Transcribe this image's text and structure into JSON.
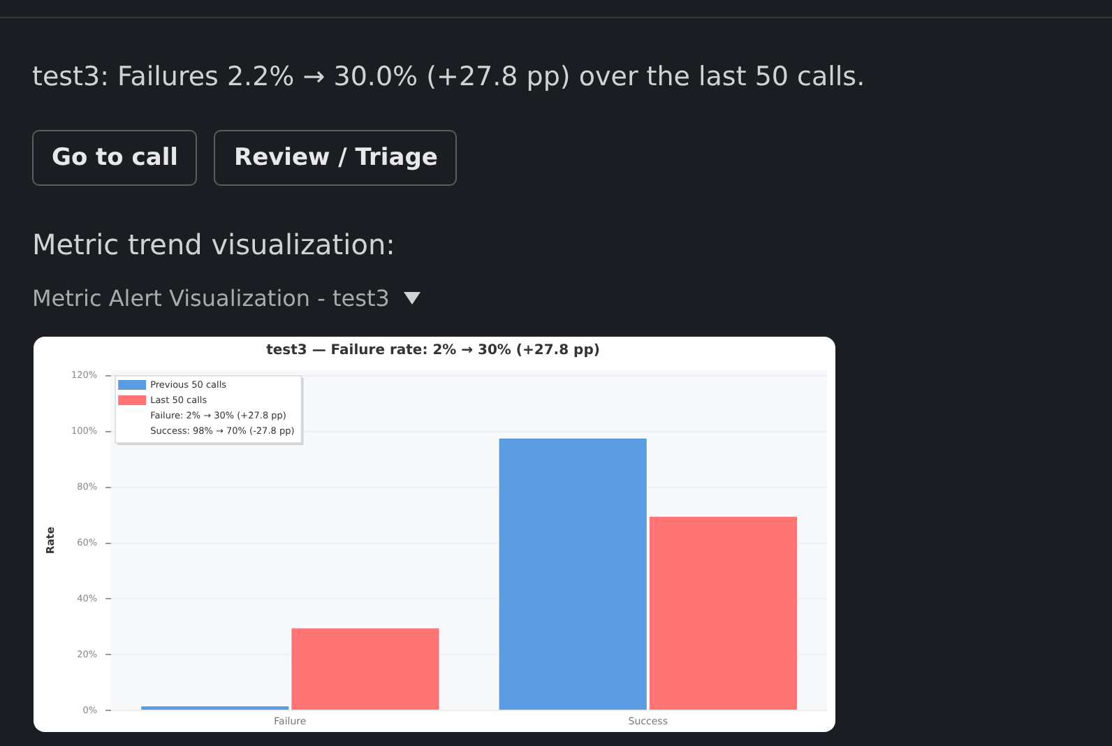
{
  "chart_data": {
    "type": "bar",
    "title": "test3 — Failure rate: 2% → 30% (+27.8 pp)",
    "ylabel": "Rate",
    "categories": [
      "Failure",
      "Success"
    ],
    "series": [
      {
        "name": "Previous 50 calls",
        "color": "#5b9be0",
        "values": [
          2,
          98
        ]
      },
      {
        "name": "Last 50 calls",
        "color": "#ff7575",
        "values": [
          30,
          70
        ]
      }
    ],
    "ylim": [
      0,
      122
    ],
    "yticks": [
      {
        "value": 0,
        "label": "0%"
      },
      {
        "value": 20,
        "label": "20%"
      },
      {
        "value": 40,
        "label": "40%"
      },
      {
        "value": 60,
        "label": "60%"
      },
      {
        "value": 80,
        "label": "80%"
      },
      {
        "value": 100,
        "label": "100%"
      },
      {
        "value": 120,
        "label": "120%"
      }
    ],
    "grid": "y",
    "legend": "top left",
    "annotations": [
      "test3: Failures 2.2% → 30.0% (+27.8 pp) over the last 50 calls.",
      "Go to call",
      "Review / Triage",
      "Metric trend visualization:",
      "Metric Alert Visualization - test3",
      "Failure: 2% → 30% (+27.8 pp)",
      "Success: 98% → 70% (-27.8 pp)"
    ]
  }
}
